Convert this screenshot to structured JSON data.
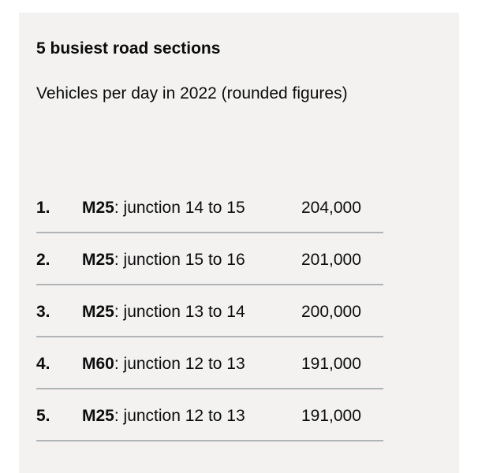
{
  "card": {
    "title": "5 busiest road sections",
    "subtitle": "Vehicles per day in 2022 (rounded figures)"
  },
  "rows": [
    {
      "rank": "1.",
      "road": "M25",
      "junction": ": junction 14 to 15",
      "value": "204,000"
    },
    {
      "rank": "2.",
      "road": "M25",
      "junction": ": junction 15 to 16",
      "value": "201,000"
    },
    {
      "rank": "3.",
      "road": "M25",
      "junction": ": junction 13 to 14",
      "value": "200,000"
    },
    {
      "rank": "4.",
      "road": "M60",
      "junction": ": junction 12 to 13",
      "value": "191,000"
    },
    {
      "rank": "5.",
      "road": "M25",
      "junction": ": junction 12 to 13",
      "value": "191,000"
    }
  ],
  "colors": {
    "panel_background": "#f3f2f1",
    "text": "#0b0c0c",
    "divider": "#b1b4b6"
  }
}
